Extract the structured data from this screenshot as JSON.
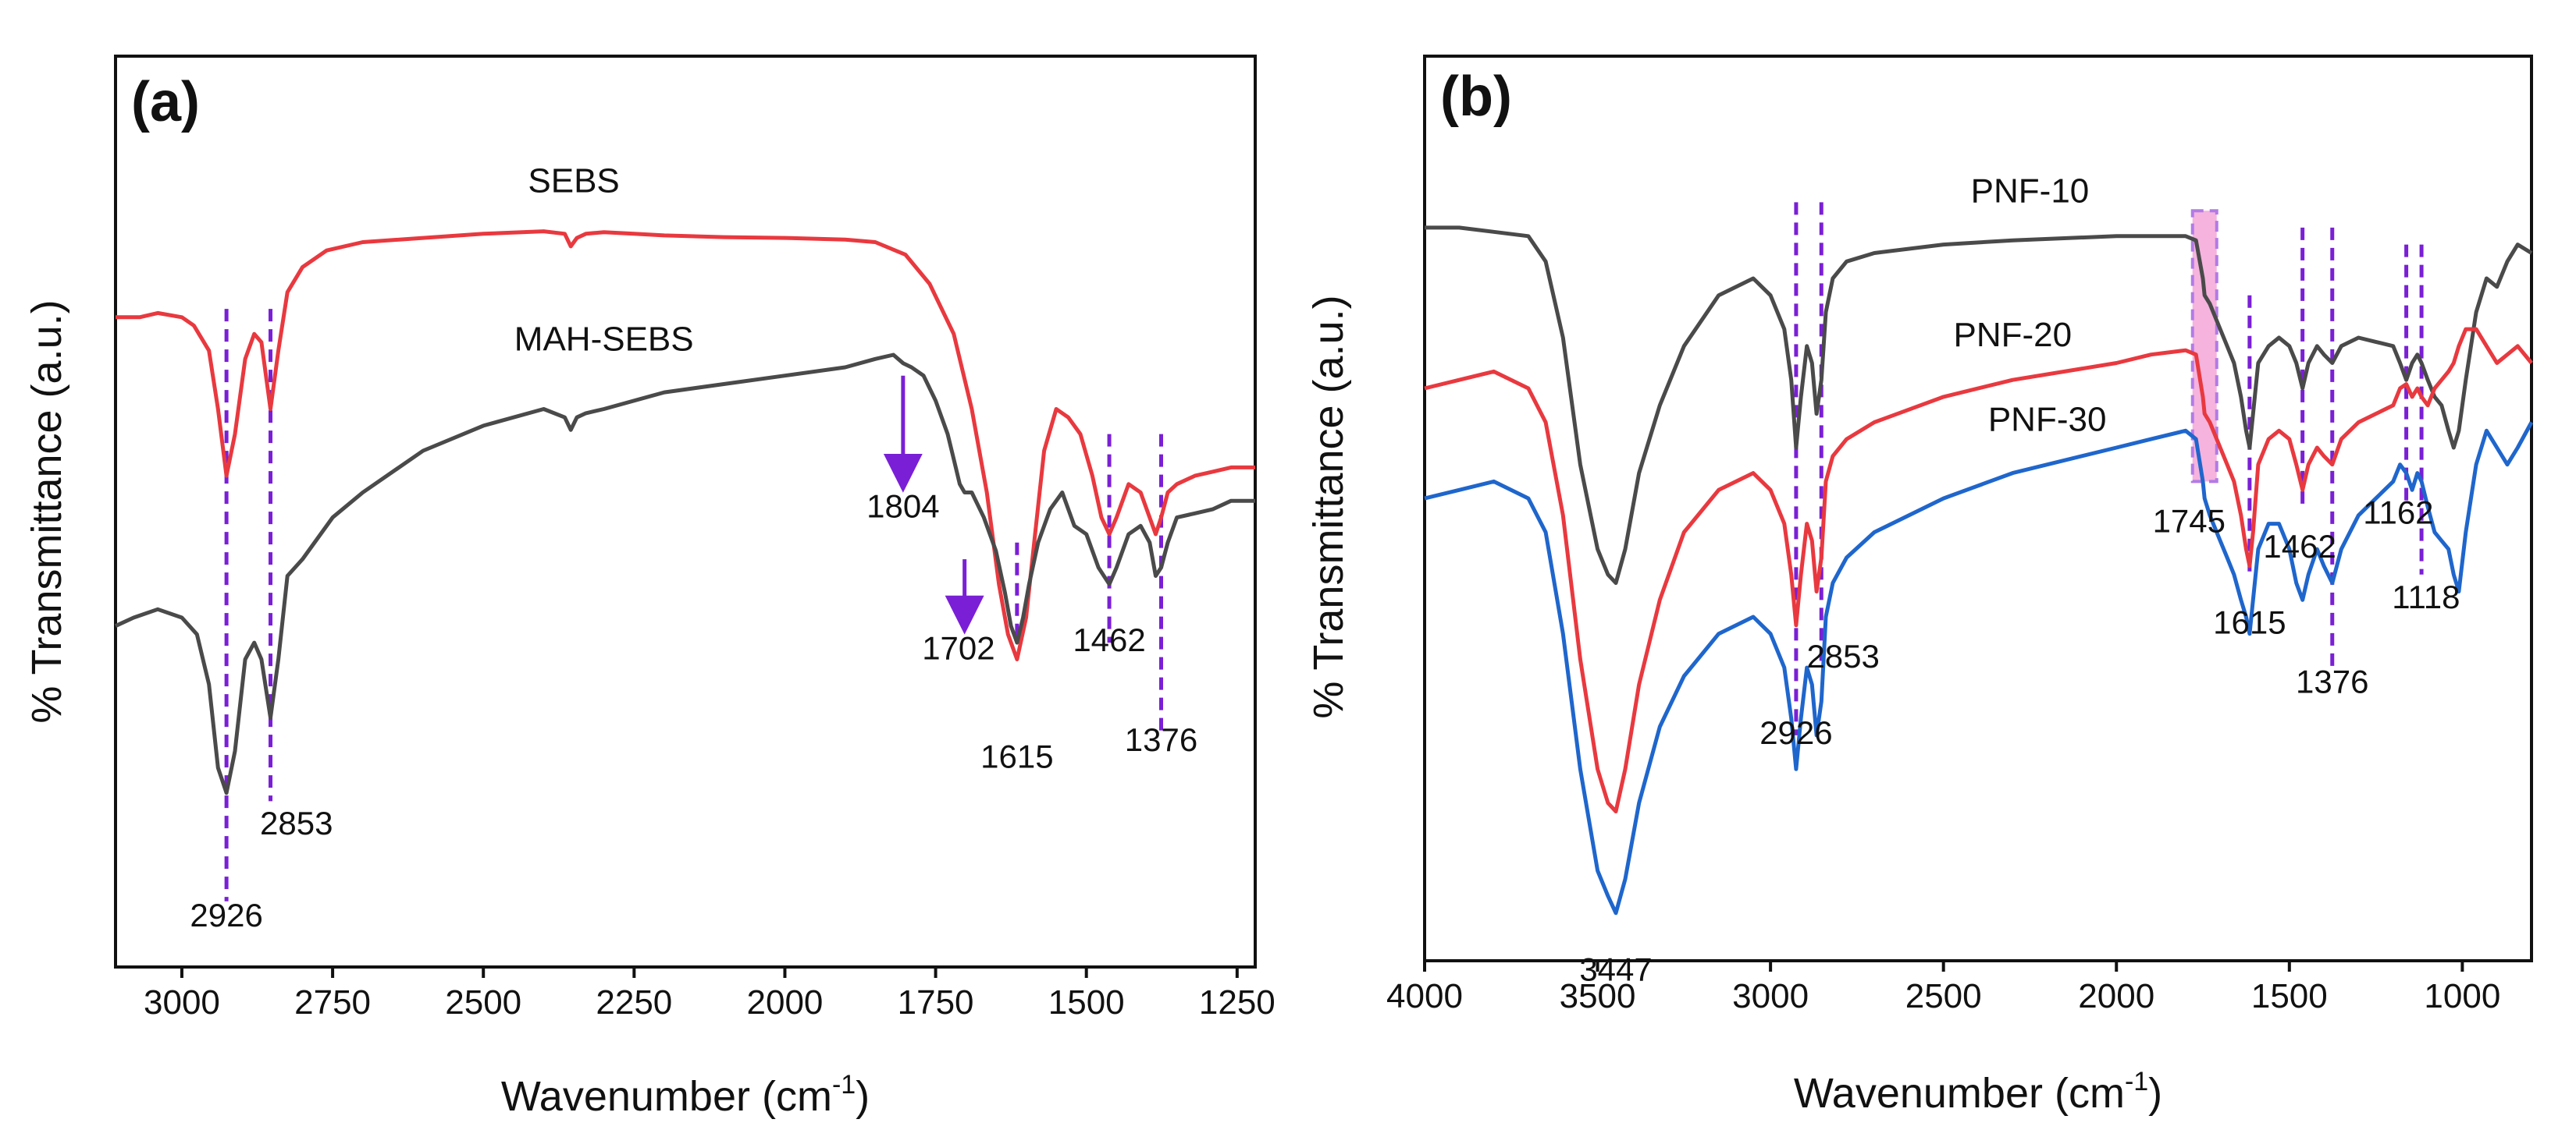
{
  "chart_data": [
    {
      "id": "a",
      "type": "line",
      "panel_label": "(a)",
      "xlabel_main": "Wavenumber (cm",
      "xlabel_sup": "-1",
      "xlabel_close": ")",
      "ylabel": "% Transmittance (a.u.)",
      "xlim": [
        3110,
        1220
      ],
      "ylim": [
        0,
        100
      ],
      "x_ticks": [
        3000,
        2750,
        2500,
        2250,
        2000,
        1750,
        1500,
        1250
      ],
      "series": [
        {
          "name": "SEBS",
          "color": "#e8393f",
          "x": [
            3110,
            3070,
            3040,
            3000,
            2980,
            2955,
            2940,
            2926,
            2912,
            2895,
            2880,
            2868,
            2853,
            2840,
            2825,
            2800,
            2760,
            2700,
            2600,
            2500,
            2400,
            2365,
            2355,
            2345,
            2330,
            2300,
            2250,
            2200,
            2100,
            2000,
            1900,
            1850,
            1800,
            1760,
            1720,
            1690,
            1665,
            1645,
            1630,
            1615,
            1600,
            1585,
            1570,
            1550,
            1530,
            1510,
            1490,
            1475,
            1462,
            1450,
            1430,
            1410,
            1395,
            1385,
            1376,
            1365,
            1350,
            1320,
            1290,
            1260,
            1220
          ],
          "y": [
            76,
            76,
            76.5,
            76,
            75,
            72,
            65,
            57,
            62,
            71,
            74,
            73,
            65,
            72,
            79,
            82,
            84,
            85,
            85.5,
            86,
            86.3,
            86,
            84.5,
            85.5,
            86,
            86.2,
            86,
            85.8,
            85.6,
            85.5,
            85.3,
            85,
            83.5,
            80,
            74,
            65,
            55,
            44,
            38,
            35,
            40,
            50,
            60,
            65,
            64,
            62,
            57,
            52,
            50,
            52,
            56,
            55,
            52,
            50,
            52,
            55,
            56,
            57,
            57.5,
            58,
            58
          ],
          "label_text": "SEBS",
          "label_x": 2350,
          "label_y": 91
        },
        {
          "name": "MAH-SEBS",
          "color": "#4a4a4a",
          "x": [
            3110,
            3080,
            3040,
            3000,
            2975,
            2955,
            2940,
            2926,
            2912,
            2895,
            2880,
            2868,
            2853,
            2840,
            2825,
            2800,
            2750,
            2700,
            2600,
            2500,
            2400,
            2365,
            2355,
            2345,
            2330,
            2300,
            2200,
            2100,
            2000,
            1900,
            1850,
            1820,
            1804,
            1790,
            1770,
            1750,
            1730,
            1720,
            1710,
            1702,
            1690,
            1670,
            1650,
            1635,
            1625,
            1615,
            1605,
            1595,
            1580,
            1560,
            1540,
            1520,
            1500,
            1480,
            1462,
            1450,
            1430,
            1410,
            1395,
            1385,
            1376,
            1365,
            1350,
            1320,
            1290,
            1260,
            1220
          ],
          "y": [
            39,
            40,
            41,
            40,
            38,
            32,
            22,
            19,
            24,
            35,
            37,
            35,
            28,
            35,
            45,
            47,
            52,
            55,
            60,
            63,
            65,
            64,
            62.5,
            64,
            64.5,
            65,
            67,
            68,
            69,
            70,
            71,
            71.5,
            70.5,
            70,
            69,
            66,
            62,
            59,
            56,
            55,
            55,
            52,
            48,
            43,
            39,
            37,
            40,
            44,
            49,
            53,
            55,
            51,
            50,
            46,
            44,
            46,
            50,
            51,
            49,
            45,
            46,
            49,
            52,
            52.5,
            53,
            54,
            54
          ],
          "label_text": "MAH-SEBS",
          "label_x": 2300,
          "label_y": 72
        }
      ],
      "vlines": [
        {
          "x": 2926,
          "y_top": 77,
          "y_bottom": 6
        },
        {
          "x": 2853,
          "y_top": 77,
          "y_bottom": 18
        },
        {
          "x": 1615,
          "y_top": 49,
          "y_bottom": 37
        },
        {
          "x": 1462,
          "y_top": 62,
          "y_bottom": 37
        },
        {
          "x": 1376,
          "y_top": 62,
          "y_bottom": 26
        }
      ],
      "arrows": [
        {
          "x": 1804,
          "y_from": 69,
          "y_to": 56
        },
        {
          "x": 1702,
          "y_from": 47,
          "y_to": 39
        }
      ],
      "annotations": [
        {
          "text": "2926",
          "x": 2926,
          "y": 3
        },
        {
          "text": "2853",
          "x": 2810,
          "y": 14
        },
        {
          "text": "1804",
          "x": 1804,
          "y": 52
        },
        {
          "text": "1702",
          "x": 1712,
          "y": 35
        },
        {
          "text": "1462",
          "x": 1462,
          "y": 36
        },
        {
          "text": "1615",
          "x": 1615,
          "y": 22
        },
        {
          "text": "1376",
          "x": 1376,
          "y": 24
        }
      ]
    },
    {
      "id": "b",
      "type": "line",
      "panel_label": "(b)",
      "xlabel_main": "Wavenumber (cm",
      "xlabel_sup": "-1",
      "xlabel_close": ")",
      "ylabel": "% Transmittance (a.u.)",
      "xlim": [
        4000,
        800
      ],
      "ylim": [
        0,
        100
      ],
      "x_ticks": [
        4000,
        3500,
        3000,
        2500,
        2000,
        1500,
        1000
      ],
      "series": [
        {
          "name": "PNF-10",
          "color": "#4a4a4a",
          "x": [
            4000,
            3900,
            3800,
            3700,
            3650,
            3600,
            3550,
            3500,
            3470,
            3447,
            3420,
            3380,
            3320,
            3250,
            3150,
            3050,
            3000,
            2960,
            2940,
            2926,
            2912,
            2895,
            2880,
            2867,
            2853,
            2840,
            2820,
            2780,
            2700,
            2500,
            2300,
            2000,
            1900,
            1800,
            1770,
            1750,
            1745,
            1730,
            1700,
            1680,
            1660,
            1640,
            1625,
            1615,
            1605,
            1590,
            1560,
            1530,
            1500,
            1480,
            1462,
            1445,
            1420,
            1400,
            1376,
            1350,
            1300,
            1250,
            1200,
            1180,
            1162,
            1145,
            1130,
            1118,
            1100,
            1080,
            1060,
            1040,
            1025,
            1010,
            990,
            960,
            930,
            900,
            870,
            840,
            800
          ],
          "y": [
            86,
            86,
            85.5,
            85,
            82,
            73,
            58,
            48,
            45,
            44,
            48,
            57,
            65,
            72,
            78,
            80,
            78,
            74,
            68,
            60,
            66,
            72,
            70,
            64,
            68,
            76,
            80,
            82,
            83,
            84,
            84.5,
            85,
            85,
            85,
            84.5,
            80,
            78,
            77,
            74,
            72,
            70,
            66,
            62,
            60,
            64,
            70,
            72,
            73,
            72,
            70,
            67,
            70,
            72,
            71,
            70,
            72,
            73,
            72.5,
            72,
            70,
            68,
            70,
            71,
            70,
            68,
            66,
            65,
            62,
            60,
            62,
            68,
            76,
            80,
            79,
            82,
            84,
            83
          ],
          "label_text": "PNF-10",
          "label_x": 2250,
          "label_y": 89
        },
        {
          "name": "PNF-20",
          "color": "#e8393f",
          "x": [
            4000,
            3900,
            3800,
            3700,
            3650,
            3600,
            3550,
            3500,
            3470,
            3447,
            3420,
            3380,
            3320,
            3250,
            3150,
            3050,
            3000,
            2960,
            2940,
            2926,
            2912,
            2895,
            2880,
            2867,
            2853,
            2840,
            2820,
            2780,
            2700,
            2500,
            2300,
            2000,
            1900,
            1800,
            1770,
            1750,
            1745,
            1730,
            1700,
            1680,
            1660,
            1640,
            1625,
            1615,
            1605,
            1590,
            1560,
            1530,
            1500,
            1480,
            1462,
            1445,
            1420,
            1400,
            1376,
            1350,
            1300,
            1250,
            1200,
            1180,
            1162,
            1145,
            1130,
            1118,
            1100,
            1080,
            1060,
            1040,
            1025,
            1010,
            990,
            960,
            930,
            900,
            870,
            840,
            800
          ],
          "y": [
            67,
            68,
            69,
            67,
            63,
            52,
            35,
            22,
            18,
            17,
            22,
            32,
            42,
            50,
            55,
            57,
            55,
            51,
            45,
            39,
            45,
            51,
            49,
            43,
            47,
            56,
            59,
            61,
            63,
            66,
            68,
            70,
            71,
            71.5,
            71,
            66,
            64,
            63,
            60,
            58,
            56,
            52,
            48,
            46,
            50,
            58,
            61,
            62,
            61,
            58,
            55,
            58,
            60,
            59,
            58,
            61,
            63,
            64,
            65,
            67,
            67.5,
            66,
            67,
            66,
            65,
            67,
            68,
            69,
            70,
            72,
            74,
            74,
            72,
            70,
            71,
            72,
            70
          ],
          "label_text": "PNF-20",
          "label_x": 2300,
          "label_y": 72
        },
        {
          "name": "PNF-30",
          "color": "#1f66cc",
          "x": [
            4000,
            3900,
            3800,
            3700,
            3650,
            3600,
            3550,
            3500,
            3470,
            3447,
            3420,
            3380,
            3320,
            3250,
            3150,
            3050,
            3000,
            2960,
            2940,
            2926,
            2912,
            2895,
            2880,
            2867,
            2853,
            2840,
            2820,
            2780,
            2700,
            2500,
            2300,
            2000,
            1900,
            1800,
            1770,
            1750,
            1745,
            1730,
            1700,
            1680,
            1660,
            1640,
            1625,
            1615,
            1605,
            1590,
            1560,
            1530,
            1500,
            1480,
            1462,
            1445,
            1420,
            1400,
            1376,
            1350,
            1300,
            1250,
            1200,
            1180,
            1162,
            1145,
            1130,
            1118,
            1100,
            1080,
            1060,
            1040,
            1025,
            1010,
            990,
            960,
            930,
            900,
            870,
            840,
            800
          ],
          "y": [
            54,
            55,
            56,
            54,
            50,
            38,
            22,
            10,
            7,
            5,
            9,
            18,
            27,
            33,
            38,
            40,
            38,
            34,
            28,
            22,
            28,
            34,
            32,
            26,
            30,
            40,
            44,
            47,
            50,
            54,
            57,
            60,
            61,
            62,
            61,
            56,
            54,
            52,
            49,
            47,
            45,
            42,
            40,
            38,
            42,
            48,
            51,
            51,
            48,
            44,
            42,
            45,
            48,
            46,
            44,
            48,
            52,
            54,
            56,
            58,
            57,
            55,
            57,
            56,
            53,
            50,
            49,
            48,
            45,
            43,
            50,
            58,
            62,
            60,
            58,
            60,
            63
          ],
          "label_text": "PNF-30",
          "label_x": 2200,
          "label_y": 62
        }
      ],
      "vlines": [
        {
          "x": 2926,
          "y_top": 89,
          "y_bottom": 26
        },
        {
          "x": 2853,
          "y_top": 89,
          "y_bottom": 34
        },
        {
          "x": 1615,
          "y_top": 78,
          "y_bottom": 45
        },
        {
          "x": 1462,
          "y_top": 86,
          "y_bottom": 53
        },
        {
          "x": 1376,
          "y_top": 86,
          "y_bottom": 34
        },
        {
          "x": 1162,
          "y_top": 84,
          "y_bottom": 53
        },
        {
          "x": 1118,
          "y_top": 84,
          "y_bottom": 45
        }
      ],
      "highlight": {
        "x_from": 1780,
        "x_to": 1710,
        "y_from": 56,
        "y_to": 88
      },
      "annotations": [
        {
          "text": "3447",
          "x": 3447,
          "y": -3
        },
        {
          "text": "2926",
          "x": 2926,
          "y": 25
        },
        {
          "text": "2853",
          "x": 2790,
          "y": 34
        },
        {
          "text": "1745",
          "x": 1790,
          "y": 50
        },
        {
          "text": "1462",
          "x": 1470,
          "y": 47
        },
        {
          "text": "1615",
          "x": 1615,
          "y": 38
        },
        {
          "text": "1376",
          "x": 1376,
          "y": 31
        },
        {
          "text": "1162",
          "x": 1185,
          "y": 51
        },
        {
          "text": "1118",
          "x": 1105,
          "y": 41
        }
      ]
    }
  ]
}
